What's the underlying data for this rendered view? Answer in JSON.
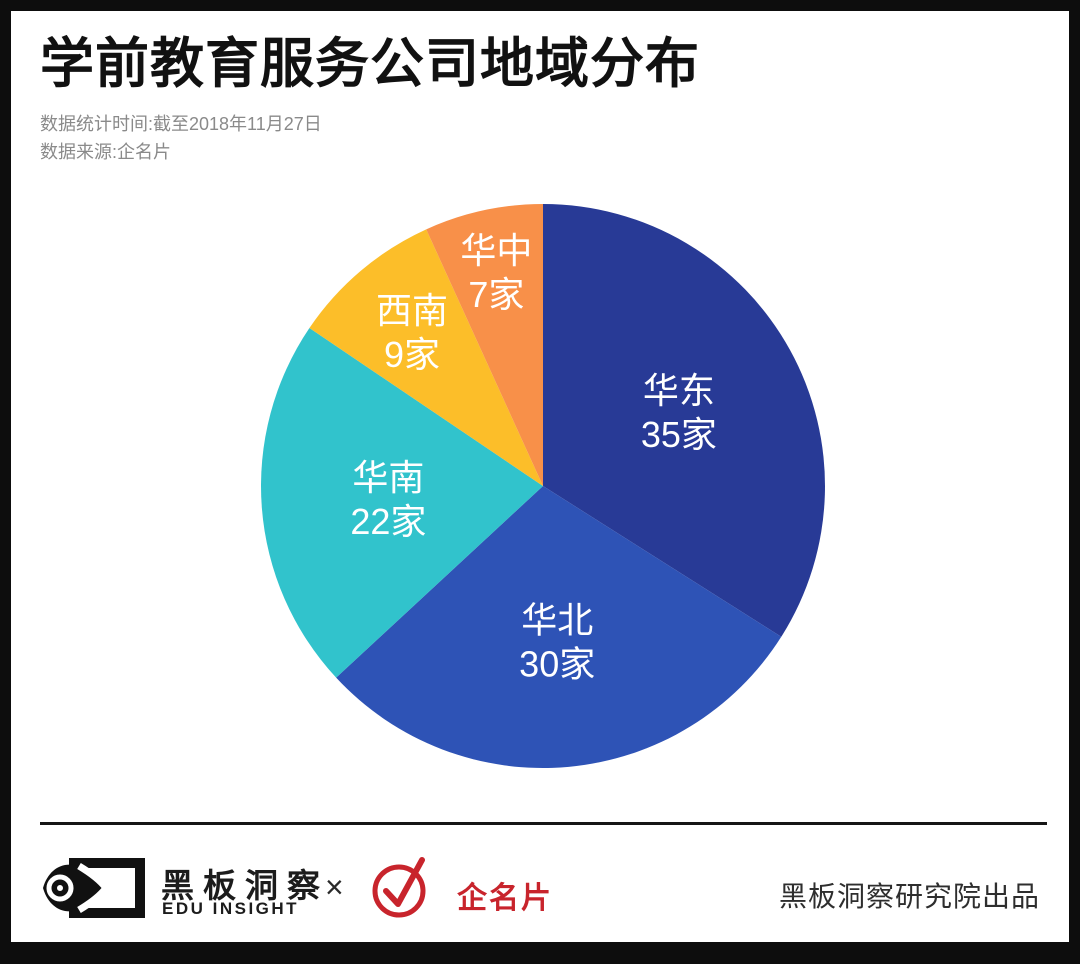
{
  "header": {
    "title": "学前教育服务公司地域分布",
    "subtitle_line1": "数据统计时间:截至2018年11月27日",
    "subtitle_line2": "数据来源:企名片"
  },
  "chart_data": {
    "type": "pie",
    "title": "学前教育服务公司地域分布",
    "unit": "家",
    "total": 103,
    "start_angle_deg": 0,
    "direction": "clockwise",
    "legend_position": "none",
    "labels_inside": true,
    "label_color": "#ffffff",
    "slices": [
      {
        "label": "华东",
        "value": 35,
        "color": "#283a96",
        "label_radius": 0.55
      },
      {
        "label": "华北",
        "value": 30,
        "color": "#2e53b6",
        "label_radius": 0.55
      },
      {
        "label": "华南",
        "value": 22,
        "color": "#31c3cc",
        "label_radius": 0.55
      },
      {
        "label": "西南",
        "value": 9,
        "color": "#fcbe29",
        "label_radius": 0.72
      },
      {
        "label": "华中",
        "value": 7,
        "color": "#f89049",
        "label_radius": 0.78
      }
    ]
  },
  "footer": {
    "brand_left_cn": "黑板洞察",
    "brand_left_en": "EDU INSIGHT",
    "separator": "×",
    "partner_name": "企名片",
    "credit": "黑板洞察研究院出品",
    "brand_red": "#c8242c",
    "icons": {
      "left_logo": "eye-logo-icon",
      "partner_logo": "check-circle-icon"
    }
  }
}
